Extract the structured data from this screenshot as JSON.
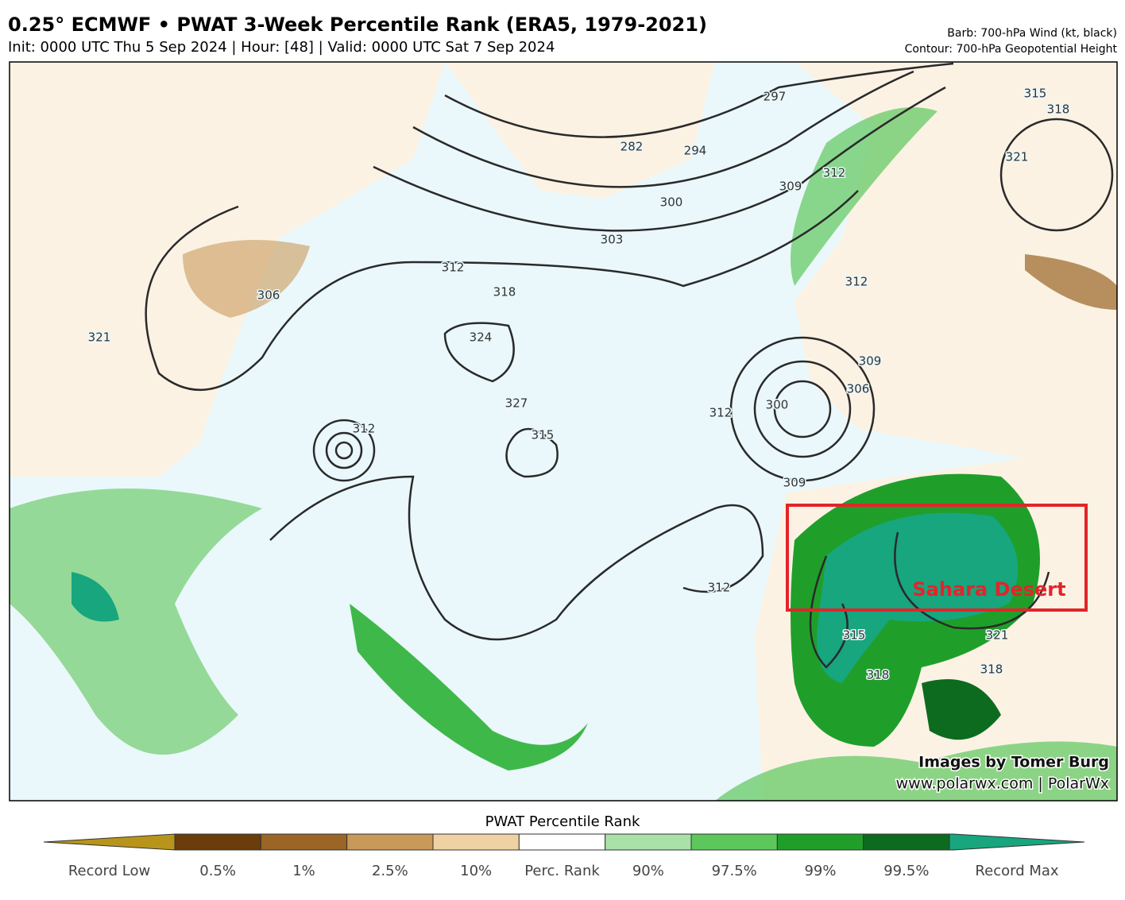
{
  "header": {
    "title": "0.25° ECMWF • PWAT 3-Week Percentile Rank (ERA5, 1979-2021)",
    "subtitle": "Init: 0000 UTC Thu 5 Sep 2024 | Hour: [48] | Valid: 0000 UTC Sat 7 Sep 2024",
    "notes": [
      "Barb: 700-hPa Wind (kt, black)",
      "Contour: 700-hPa Geopotential Height"
    ]
  },
  "map": {
    "contour_labels": [
      "297",
      "282",
      "294",
      "300",
      "303",
      "309",
      "312",
      "318",
      "315",
      "321",
      "306",
      "321",
      "312",
      "318",
      "324",
      "327",
      "315",
      "312",
      "312",
      "312",
      "309",
      "306",
      "300",
      "309",
      "312",
      "315",
      "318",
      "321",
      "318"
    ],
    "annotation": "Sahara Desert",
    "credits": [
      "Images by Tomer Burg",
      "www.polarwx.com | PolarWx"
    ]
  },
  "colorbar": {
    "title": "PWAT Percentile Rank",
    "labels": [
      "Record Low",
      "0.5%",
      "1%",
      "2.5%",
      "10%",
      "Perc. Rank",
      "90%",
      "97.5%",
      "99%",
      "99.5%",
      "Record Max"
    ],
    "colors": [
      "#b8951a",
      "#6b3d0c",
      "#9a6525",
      "#c9995a",
      "#efd2a4",
      "#ffffff",
      "#a8e2a8",
      "#5cc85c",
      "#1f9f2a",
      "#0d6b1f",
      "#17a67e"
    ]
  }
}
